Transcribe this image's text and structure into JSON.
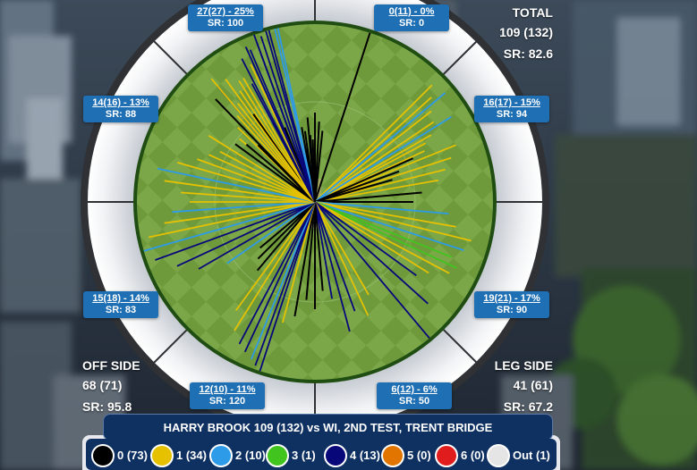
{
  "colors": {
    "run0": "#000000",
    "run1": "#e5c100",
    "run2": "#2e9be8",
    "run3": "#41c41e",
    "run4": "#07077a",
    "run5": "#e27400",
    "run6": "#e01c1c",
    "out": "#e5e5e5",
    "zone_box": "#1e6fb4",
    "title_bar": "#0f3162",
    "field_green": "#6f9a3d",
    "boundary_rope": "#1f4d12"
  },
  "zones": [
    {
      "label": "27(27) - 25%",
      "sr": "SR: 100"
    },
    {
      "label": "0(11) - 0%",
      "sr": "SR: 0"
    },
    {
      "label": "16(17) - 15%",
      "sr": "SR: 94"
    },
    {
      "label": "19(21) - 17%",
      "sr": "SR: 90"
    },
    {
      "label": "6(12) - 6%",
      "sr": "SR: 50"
    },
    {
      "label": "12(10) - 11%",
      "sr": "SR: 120"
    },
    {
      "label": "15(18) - 14%",
      "sr": "SR: 83"
    },
    {
      "label": "14(16) - 13%",
      "sr": "SR: 88"
    }
  ],
  "total": {
    "label": "TOTAL",
    "runs": "109 (132)",
    "sr": "SR: 82.6"
  },
  "off_side": {
    "label": "OFF SIDE",
    "runs": "68 (71)",
    "sr": "SR: 95.8"
  },
  "leg_side": {
    "label": "LEG SIDE",
    "runs": "41 (61)",
    "sr": "SR: 67.2"
  },
  "title": "HARRY BROOK 109 (132) vs WI, 2ND TEST, TRENT BRIDGE",
  "legend": [
    {
      "text": "0 (73)",
      "icon": "run-0-dot"
    },
    {
      "text": "1 (34)",
      "icon": "run-1-dot"
    },
    {
      "text": "2 (10)",
      "icon": "run-2-dot"
    },
    {
      "text": "3 (1)",
      "icon": "run-3-dot"
    },
    {
      "text": "4 (13)",
      "icon": "run-4-dot"
    },
    {
      "text": "5 (0)",
      "icon": "run-5-dot"
    },
    {
      "text": "6 (0)",
      "icon": "run-6-dot"
    },
    {
      "text": "Out (1)",
      "icon": "out-dot"
    }
  ]
}
